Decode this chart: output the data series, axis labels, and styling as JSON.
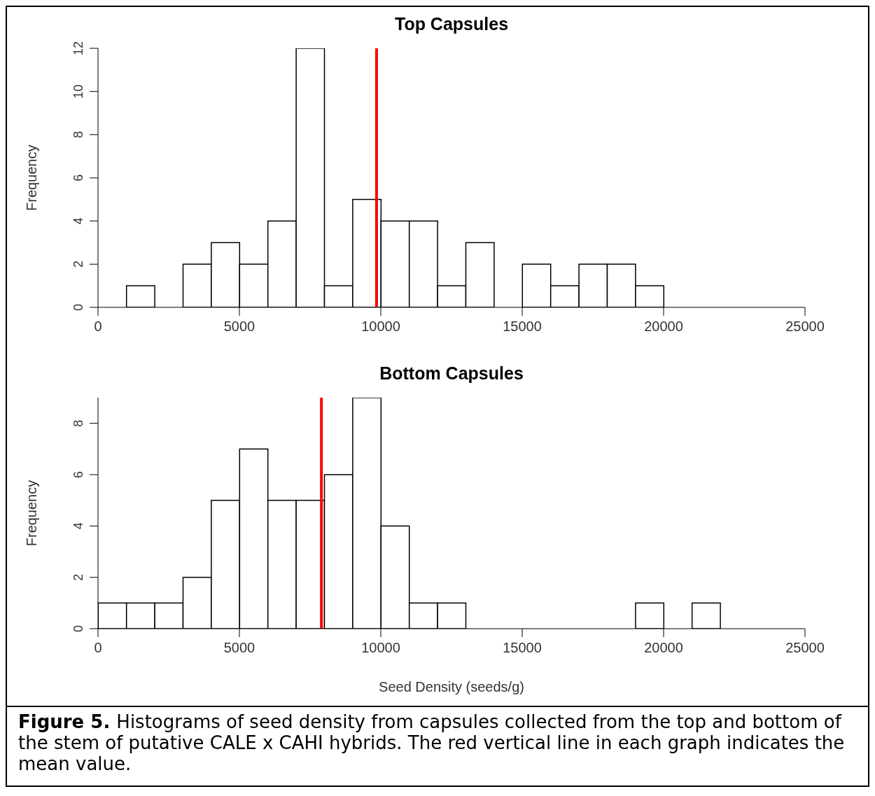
{
  "chart_data": [
    {
      "type": "histogram",
      "title": "Top Capsules",
      "ylabel": "Frequency",
      "bins": [
        0,
        1000,
        2000,
        3000,
        4000,
        5000,
        6000,
        7000,
        8000,
        9000,
        10000,
        11000,
        12000,
        13000,
        14000,
        15000,
        16000,
        17000,
        18000,
        19000,
        20000,
        21000,
        22000,
        23000,
        24000,
        25000
      ],
      "values": [
        0,
        1,
        0,
        2,
        3,
        2,
        4,
        12,
        1,
        5,
        4,
        4,
        1,
        3,
        0,
        2,
        1,
        2,
        2,
        1,
        0,
        0,
        0,
        0,
        0
      ],
      "color": "#ffffff",
      "xlim": [
        0,
        25000
      ],
      "xticks": [
        0,
        5000,
        10000,
        15000,
        20000,
        25000
      ],
      "ylim": [
        0,
        12
      ],
      "yticks": [
        0,
        2,
        4,
        6,
        8,
        10,
        12
      ],
      "ref_lines": [
        {
          "axis": "x",
          "value": 9850,
          "color": "#ff0000"
        }
      ]
    },
    {
      "type": "histogram",
      "title": "Bottom Capsules",
      "xlabel": "Seed Density (seeds/g)",
      "ylabel": "Frequency",
      "bins": [
        0,
        1000,
        2000,
        3000,
        4000,
        5000,
        6000,
        7000,
        8000,
        9000,
        10000,
        11000,
        12000,
        13000,
        14000,
        15000,
        16000,
        17000,
        18000,
        19000,
        20000,
        21000,
        22000,
        23000,
        24000,
        25000
      ],
      "values": [
        1,
        1,
        1,
        2,
        5,
        7,
        5,
        5,
        6,
        9,
        4,
        1,
        1,
        0,
        0,
        0,
        0,
        0,
        0,
        1,
        0,
        1,
        0,
        0,
        0
      ],
      "color": "#ffffff",
      "xlim": [
        0,
        25000
      ],
      "xticks": [
        0,
        5000,
        10000,
        15000,
        20000,
        25000
      ],
      "ylim": [
        0,
        9
      ],
      "yticks": [
        0,
        2,
        4,
        6,
        8
      ],
      "ref_lines": [
        {
          "axis": "x",
          "value": 7900,
          "color": "#ff0000"
        }
      ],
      "annotations": [
        "Figure 5.",
        "Histograms of seed density from capsules collected from the top and bottom of the stem of putative CALE x CAHI hybrids. The red vertical line in each graph indicates the mean value."
      ]
    }
  ]
}
